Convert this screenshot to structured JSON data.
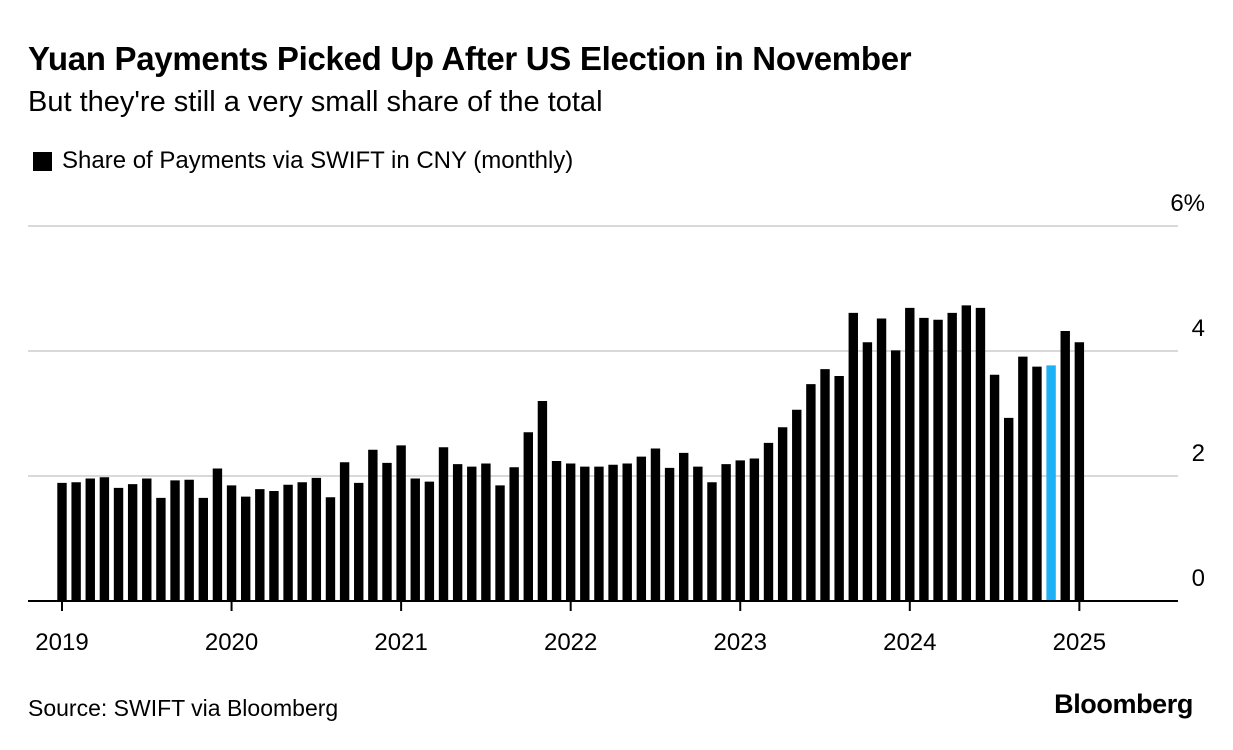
{
  "header": {
    "title": "Yuan Payments Picked Up After US Election in November",
    "subtitle": "But they're still a very small share of the total"
  },
  "legend": {
    "label": "Share of Payments via SWIFT in CNY (monthly)"
  },
  "footer": {
    "source": "Source: SWIFT via Bloomberg",
    "brand": "Bloomberg"
  },
  "chart_data": {
    "type": "bar",
    "start_month": "2019-01",
    "x_tick_labels": [
      "2019",
      "2020",
      "2021",
      "2022",
      "2023",
      "2024",
      "2025"
    ],
    "y_tick_labels": [
      "6%",
      "4",
      "2",
      "0"
    ],
    "ylim": [
      0,
      6
    ],
    "yticks": [
      0,
      2,
      4,
      6
    ],
    "grid": true,
    "legend_position": "top-left",
    "colors": {
      "default": "#000000",
      "highlight": "#1fb1f5",
      "grid": "#d9d9d9"
    },
    "highlight_month": "2024-11",
    "series": [
      {
        "name": "Share of Payments via SWIFT in CNY (monthly)",
        "values": [
          1.89,
          1.9,
          1.96,
          1.98,
          1.81,
          1.87,
          1.96,
          1.65,
          1.93,
          1.94,
          1.65,
          2.12,
          1.85,
          1.67,
          1.79,
          1.76,
          1.86,
          1.9,
          1.97,
          1.66,
          2.22,
          1.89,
          2.42,
          2.21,
          2.49,
          1.96,
          1.91,
          2.46,
          2.19,
          2.15,
          2.2,
          1.85,
          2.14,
          2.7,
          3.2,
          2.24,
          2.2,
          2.15,
          2.15,
          2.18,
          2.2,
          2.31,
          2.44,
          2.13,
          2.37,
          2.15,
          1.9,
          2.19,
          2.25,
          2.28,
          2.53,
          2.78,
          3.06,
          3.47,
          3.71,
          3.6,
          4.61,
          4.14,
          4.52,
          4.01,
          4.69,
          4.53,
          4.5,
          4.61,
          4.73,
          4.69,
          3.62,
          2.93,
          3.91,
          3.75,
          3.77,
          4.32,
          4.14
        ]
      }
    ]
  }
}
